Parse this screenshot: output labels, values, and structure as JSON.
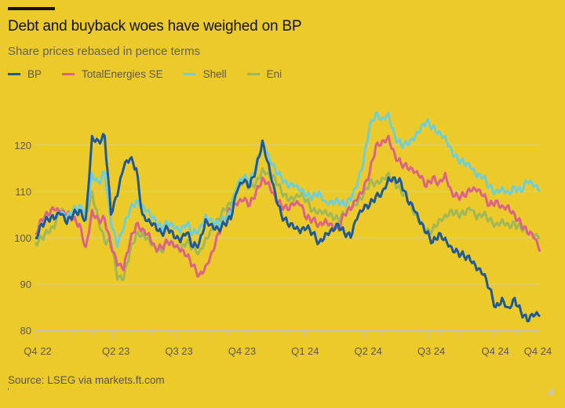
{
  "header": {
    "title": "Debt and buyback woes have weighed on BP",
    "subtitle": "Share prices rebased in pence terms"
  },
  "footer": {
    "source": "Source: LSEG via markets.ft.com"
  },
  "colors": {
    "background": "#ecca2a",
    "gridline": "#d9cfa8",
    "axis_text": "#5e5850",
    "BP": "#1f5a96",
    "TotalEnergies SE": "#dc6289",
    "Shell": "#6fcfd9",
    "Eni": "#9eb85a"
  },
  "chart_data": {
    "type": "line",
    "title": "Debt and buyback woes have weighed on BP",
    "subtitle": "Share prices rebased in pence terms",
    "xlabel": "",
    "ylabel": "",
    "ylim": [
      80,
      128
    ],
    "yticks": [
      80,
      90,
      100,
      110,
      120
    ],
    "grid": true,
    "legend_position": "top-left",
    "x_tick_labels": [
      "Q4 22",
      "Q2 23",
      "Q3 23",
      "Q4 23",
      "Q1 24",
      "Q2 24",
      "Q3 24",
      "Q4 24",
      "Q4 24"
    ],
    "x_tick_positions": [
      0,
      0.155,
      0.28,
      0.405,
      0.53,
      0.655,
      0.78,
      0.907,
      0.993
    ],
    "x_domain": [
      0,
      1
    ],
    "x": [
      0,
      0.0125,
      0.025,
      0.0375,
      0.05,
      0.0625,
      0.075,
      0.0875,
      0.1,
      0.1125,
      0.125,
      0.1375,
      0.15,
      0.1625,
      0.175,
      0.1875,
      0.2,
      0.2125,
      0.225,
      0.2375,
      0.25,
      0.2625,
      0.275,
      0.2875,
      0.3,
      0.3125,
      0.325,
      0.3375,
      0.35,
      0.3625,
      0.375,
      0.3875,
      0.4,
      0.4125,
      0.425,
      0.4375,
      0.45,
      0.4625,
      0.475,
      0.4875,
      0.5,
      0.5125,
      0.525,
      0.5375,
      0.55,
      0.5625,
      0.575,
      0.5875,
      0.6,
      0.6125,
      0.625,
      0.6375,
      0.65,
      0.6625,
      0.675,
      0.6875,
      0.7,
      0.7125,
      0.725,
      0.7375,
      0.75,
      0.7625,
      0.775,
      0.7875,
      0.8,
      0.8125,
      0.825,
      0.8375,
      0.85,
      0.8625,
      0.875,
      0.8875,
      0.9,
      0.9125,
      0.925,
      0.9375,
      0.95,
      0.9625,
      0.975,
      0.9875,
      1.0
    ],
    "series": [
      {
        "name": "BP",
        "values": [
          100,
          103,
          104,
          104,
          105,
          103,
          105,
          106,
          104,
          122,
          121,
          122,
          105,
          109,
          115,
          117,
          115,
          105,
          104,
          103,
          101,
          102,
          100,
          99,
          101,
          98,
          99,
          104,
          103,
          102,
          103,
          104,
          110,
          112,
          111,
          115,
          121,
          116,
          110,
          105,
          103,
          102,
          101,
          102,
          101,
          99,
          101,
          102,
          103,
          101,
          100,
          104,
          106,
          107,
          109,
          110,
          113,
          113,
          112,
          108,
          106,
          103,
          101,
          99,
          101,
          100,
          98,
          97,
          96,
          95,
          93,
          92,
          89,
          85,
          87,
          85,
          87,
          84,
          82,
          83,
          83,
          86
        ]
      },
      {
        "name": "TotalEnergies SE",
        "values": [
          101,
          104,
          105,
          106,
          105,
          105,
          104,
          103,
          98,
          106,
          104,
          104,
          98,
          94,
          93,
          99,
          103,
          102,
          101,
          98,
          98,
          99,
          98,
          97,
          96,
          94,
          92,
          94,
          97,
          101,
          104,
          106,
          107,
          108,
          107,
          110,
          113,
          112,
          109,
          107,
          106,
          107,
          107,
          104,
          104,
          103,
          104,
          103,
          102,
          105,
          106,
          108,
          110,
          114,
          120,
          121,
          122,
          118,
          116,
          115,
          114,
          113,
          111,
          113,
          112,
          114,
          110,
          109,
          109,
          110,
          110,
          109,
          107,
          108,
          107,
          107,
          105,
          103,
          101,
          100,
          97,
          98
        ]
      },
      {
        "name": "Shell",
        "values": [
          100,
          103,
          104,
          104,
          105,
          104,
          106,
          107,
          106,
          114,
          112,
          114,
          103,
          98,
          102,
          106,
          108,
          107,
          106,
          104,
          102,
          103,
          102,
          101,
          103,
          101,
          102,
          105,
          104,
          103,
          104,
          105,
          111,
          113,
          112,
          116,
          121,
          118,
          115,
          113,
          111,
          111,
          110,
          109,
          109,
          110,
          108,
          108,
          108,
          107,
          108,
          111,
          116,
          124,
          127,
          126,
          127,
          122,
          120,
          120,
          121,
          123,
          125,
          124,
          123,
          122,
          119,
          117,
          116,
          115,
          113,
          113,
          111,
          110,
          111,
          110,
          111,
          110,
          112,
          111,
          110,
          112
        ]
      },
      {
        "name": "Eni",
        "values": [
          99,
          100,
          101,
          102,
          106,
          104,
          106,
          106,
          105,
          110,
          104,
          99,
          99,
          91,
          91,
          97,
          101,
          101,
          100,
          98,
          97,
          99,
          98,
          97,
          99,
          98,
          97,
          100,
          102,
          104,
          106,
          107,
          110,
          112,
          111,
          112,
          115,
          114,
          113,
          110,
          108,
          108,
          109,
          108,
          106,
          106,
          106,
          105,
          104,
          105,
          106,
          107,
          109,
          112,
          112,
          113,
          114,
          112,
          110,
          108,
          105,
          103,
          101,
          102,
          104,
          105,
          106,
          105,
          105,
          106,
          104,
          105,
          104,
          103,
          104,
          103,
          103,
          102,
          101,
          100,
          100,
          100
        ]
      }
    ]
  }
}
